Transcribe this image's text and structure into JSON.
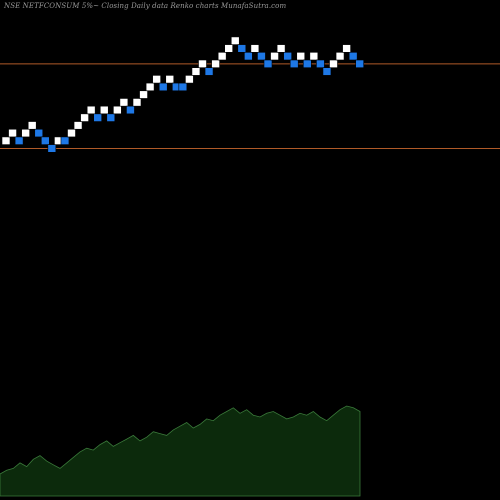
{
  "header": {
    "title": "NSE NETFCONSUM 5%~  Closing Daily data  Renko  charts MunafaSutra.com"
  },
  "colors": {
    "background": "#000000",
    "up_brick": "#ffffff",
    "down_brick": "#1e78e6",
    "brick_outline": "#000000",
    "support_line": "#b05a28",
    "volume_fill": "#0c2a0c",
    "volume_stroke": "#3a7a3a",
    "label_text": "#8a8a8a"
  },
  "chart_data": {
    "type": "renko",
    "title": "NSE NETFCONSUM 5%~  Closing Daily data  Renko  charts MunafaSutra.com",
    "brick_size": 0.25,
    "yrange": [
      61.0,
      74.0
    ],
    "lines": [
      72.25,
      69.5
    ],
    "bricks": [
      {
        "level": 69.75,
        "dir": "up"
      },
      {
        "level": 70.0,
        "dir": "up"
      },
      {
        "level": 69.75,
        "dir": "down"
      },
      {
        "level": 70.0,
        "dir": "up"
      },
      {
        "level": 70.25,
        "dir": "up"
      },
      {
        "level": 70.0,
        "dir": "down"
      },
      {
        "level": 69.75,
        "dir": "down"
      },
      {
        "level": 69.5,
        "dir": "down"
      },
      {
        "level": 69.75,
        "dir": "up"
      },
      {
        "level": 69.75,
        "dir": "down"
      },
      {
        "level": 70.0,
        "dir": "up"
      },
      {
        "level": 70.25,
        "dir": "up"
      },
      {
        "level": 70.5,
        "dir": "up"
      },
      {
        "level": 70.75,
        "dir": "up"
      },
      {
        "level": 70.5,
        "dir": "down"
      },
      {
        "level": 70.75,
        "dir": "up"
      },
      {
        "level": 70.5,
        "dir": "down"
      },
      {
        "level": 70.75,
        "dir": "up"
      },
      {
        "level": 71.0,
        "dir": "up"
      },
      {
        "level": 70.75,
        "dir": "down"
      },
      {
        "level": 71.0,
        "dir": "up"
      },
      {
        "level": 71.25,
        "dir": "up"
      },
      {
        "level": 71.5,
        "dir": "up"
      },
      {
        "level": 71.75,
        "dir": "up"
      },
      {
        "level": 71.5,
        "dir": "down"
      },
      {
        "level": 71.75,
        "dir": "up"
      },
      {
        "level": 71.5,
        "dir": "down"
      },
      {
        "level": 71.5,
        "dir": "down"
      },
      {
        "level": 71.75,
        "dir": "up"
      },
      {
        "level": 72.0,
        "dir": "up"
      },
      {
        "level": 72.25,
        "dir": "up"
      },
      {
        "level": 72.0,
        "dir": "down"
      },
      {
        "level": 72.25,
        "dir": "up"
      },
      {
        "level": 72.5,
        "dir": "up"
      },
      {
        "level": 72.75,
        "dir": "up"
      },
      {
        "level": 73.0,
        "dir": "up"
      },
      {
        "level": 72.75,
        "dir": "down"
      },
      {
        "level": 72.5,
        "dir": "down"
      },
      {
        "level": 72.75,
        "dir": "up"
      },
      {
        "level": 72.5,
        "dir": "down"
      },
      {
        "level": 72.25,
        "dir": "down"
      },
      {
        "level": 72.5,
        "dir": "up"
      },
      {
        "level": 72.75,
        "dir": "up"
      },
      {
        "level": 72.5,
        "dir": "down"
      },
      {
        "level": 72.25,
        "dir": "down"
      },
      {
        "level": 72.5,
        "dir": "up"
      },
      {
        "level": 72.25,
        "dir": "down"
      },
      {
        "level": 72.5,
        "dir": "up"
      },
      {
        "level": 72.25,
        "dir": "down"
      },
      {
        "level": 72.0,
        "dir": "down"
      },
      {
        "level": 72.25,
        "dir": "up"
      },
      {
        "level": 72.5,
        "dir": "up"
      },
      {
        "level": 72.75,
        "dir": "up"
      },
      {
        "level": 72.5,
        "dir": "down"
      },
      {
        "level": 72.25,
        "dir": "down"
      }
    ],
    "volume": [
      12,
      14,
      15,
      18,
      16,
      20,
      22,
      19,
      17,
      15,
      18,
      21,
      24,
      26,
      25,
      28,
      30,
      27,
      29,
      31,
      33,
      30,
      32,
      35,
      34,
      33,
      36,
      38,
      40,
      37,
      39,
      42,
      41,
      44,
      46,
      48,
      45,
      47,
      44,
      43,
      45,
      46,
      44,
      42,
      43,
      45,
      44,
      46,
      43,
      41,
      44,
      47,
      49,
      48,
      46
    ]
  }
}
